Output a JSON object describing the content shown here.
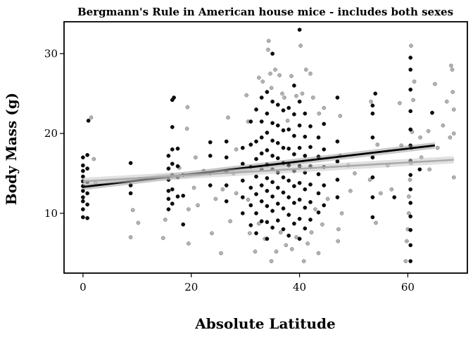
{
  "chart_data": {
    "type": "scatter",
    "title": "Bergmann's Rule in American house mice - includes both sexes",
    "xlabel": "Absolute Latitude",
    "ylabel": "Body Mass (g)",
    "xlim": [
      -3.5,
      71
    ],
    "ylim": [
      2.5,
      34
    ],
    "xticks": [
      0,
      20,
      40,
      60
    ],
    "yticks": [
      10,
      20,
      30
    ],
    "grid": false,
    "legend": "none",
    "series": [
      {
        "points": [
          [
            0,
            9.5
          ],
          [
            0,
            10.5
          ],
          [
            0,
            11.5
          ],
          [
            0,
            12.0
          ],
          [
            0,
            12.8
          ],
          [
            0,
            13.4
          ],
          [
            0,
            14.0
          ],
          [
            0,
            14.6
          ],
          [
            0,
            15.3
          ],
          [
            0,
            16.0
          ],
          [
            0,
            17.0
          ],
          [
            0.8,
            9.4
          ],
          [
            0.8,
            11.1
          ],
          [
            0.8,
            12.5
          ],
          [
            0.8,
            13.9
          ],
          [
            0.8,
            15.6
          ],
          [
            0.8,
            17.3
          ],
          [
            1.0,
            21.6
          ],
          [
            8.8,
            12.5
          ],
          [
            8.8,
            13.5
          ],
          [
            8.8,
            16.3
          ],
          [
            15.8,
            10.5
          ],
          [
            15.8,
            11.8
          ],
          [
            15.8,
            12.8
          ],
          [
            15.8,
            14.2
          ],
          [
            15.8,
            15.6
          ],
          [
            15.8,
            17.2
          ],
          [
            16.5,
            11.2
          ],
          [
            16.5,
            13.0
          ],
          [
            16.5,
            14.8
          ],
          [
            16.5,
            16.2
          ],
          [
            16.5,
            18.0
          ],
          [
            16.5,
            20.8
          ],
          [
            16.5,
            24.2
          ],
          [
            17.5,
            12.1
          ],
          [
            17.5,
            14.5
          ],
          [
            17.5,
            15.9
          ],
          [
            17.5,
            18.1
          ],
          [
            16.8,
            24.5
          ],
          [
            18.5,
            8.6
          ],
          [
            18.5,
            12.2
          ],
          [
            18.5,
            14.8
          ],
          [
            23.5,
            13.5
          ],
          [
            23.5,
            15.0
          ],
          [
            23.5,
            17.2
          ],
          [
            23.5,
            18.9
          ],
          [
            26.5,
            11.5
          ],
          [
            26.5,
            13.5
          ],
          [
            26.5,
            15.2
          ],
          [
            26.5,
            17.0
          ],
          [
            26.5,
            19.0
          ],
          [
            29.5,
            10.0
          ],
          [
            29.5,
            12.0
          ],
          [
            29.5,
            14.1
          ],
          [
            29.5,
            16.2
          ],
          [
            29.5,
            18.2
          ],
          [
            31,
            8.5
          ],
          [
            31,
            11.0
          ],
          [
            31,
            13.2
          ],
          [
            31,
            15.8
          ],
          [
            31,
            18.6
          ],
          [
            31,
            21.5
          ],
          [
            32,
            7.5
          ],
          [
            32,
            10.0
          ],
          [
            32,
            12.4
          ],
          [
            32,
            14.6
          ],
          [
            32,
            16.8
          ],
          [
            32,
            19.0
          ],
          [
            32,
            23.0
          ],
          [
            33,
            9.0
          ],
          [
            33,
            11.5
          ],
          [
            33,
            13.5
          ],
          [
            33,
            15.5
          ],
          [
            33,
            17.5
          ],
          [
            33,
            19.5
          ],
          [
            33,
            21.5
          ],
          [
            33,
            24.5
          ],
          [
            34,
            6.8
          ],
          [
            34,
            8.9
          ],
          [
            34,
            10.9
          ],
          [
            34,
            12.8
          ],
          [
            34,
            14.4
          ],
          [
            34,
            16.1
          ],
          [
            34,
            17.9
          ],
          [
            34,
            20.1
          ],
          [
            34,
            22.5
          ],
          [
            34,
            25.2
          ],
          [
            35,
            8.2
          ],
          [
            35,
            10.3
          ],
          [
            35,
            12.1
          ],
          [
            35,
            13.9
          ],
          [
            35,
            15.5
          ],
          [
            35,
            17.2
          ],
          [
            35,
            19.1
          ],
          [
            35,
            21.3
          ],
          [
            35,
            24.0
          ],
          [
            35,
            30.0
          ],
          [
            36,
            9.1
          ],
          [
            36,
            11.2
          ],
          [
            36,
            13.2
          ],
          [
            36,
            15.1
          ],
          [
            36,
            16.9
          ],
          [
            36,
            18.8
          ],
          [
            36,
            21.0
          ],
          [
            36,
            23.6
          ],
          [
            37,
            8.0
          ],
          [
            37,
            10.6
          ],
          [
            37,
            12.6
          ],
          [
            37,
            14.5
          ],
          [
            37,
            16.3
          ],
          [
            37,
            18.2
          ],
          [
            37,
            20.4
          ],
          [
            37,
            22.9
          ],
          [
            38,
            7.2
          ],
          [
            38,
            9.8
          ],
          [
            38,
            12.0
          ],
          [
            38,
            14.1
          ],
          [
            38,
            16.0
          ],
          [
            38,
            18.1
          ],
          [
            38,
            20.5
          ],
          [
            38,
            23.2
          ],
          [
            39,
            8.7
          ],
          [
            39,
            11.3
          ],
          [
            39,
            13.4
          ],
          [
            39,
            15.3
          ],
          [
            39,
            17.4
          ],
          [
            39,
            19.7
          ],
          [
            39,
            22.4
          ],
          [
            39,
            26.0
          ],
          [
            40,
            6.8
          ],
          [
            40,
            9.3
          ],
          [
            40,
            11.7
          ],
          [
            40,
            13.8
          ],
          [
            40,
            15.9
          ],
          [
            40,
            18.2
          ],
          [
            40,
            21.0
          ],
          [
            40,
            24.0
          ],
          [
            40,
            33.0
          ],
          [
            41,
            8.1
          ],
          [
            41,
            10.7
          ],
          [
            41,
            13.0
          ],
          [
            41,
            15.1
          ],
          [
            41,
            17.2
          ],
          [
            41,
            19.6
          ],
          [
            41,
            22.5
          ],
          [
            42,
            9.2
          ],
          [
            42,
            11.4
          ],
          [
            42,
            13.6
          ],
          [
            42,
            15.9
          ],
          [
            42,
            18.3
          ],
          [
            42,
            20.9
          ],
          [
            43.5,
            10.1
          ],
          [
            43.5,
            12.5
          ],
          [
            43.5,
            14.9
          ],
          [
            43.5,
            17.1
          ],
          [
            43.5,
            19.5
          ],
          [
            44.5,
            11.0
          ],
          [
            44.5,
            13.5
          ],
          [
            44.5,
            15.8
          ],
          [
            44.5,
            18.0
          ],
          [
            44.5,
            21.2
          ],
          [
            47,
            12.0
          ],
          [
            47,
            14.2
          ],
          [
            47,
            16.5
          ],
          [
            47,
            19.0
          ],
          [
            47,
            24.5
          ],
          [
            53.5,
            9.5
          ],
          [
            53.5,
            12.0
          ],
          [
            53.5,
            14.5
          ],
          [
            53.5,
            17.0
          ],
          [
            53.5,
            19.5
          ],
          [
            53.5,
            22.5
          ],
          [
            53.5,
            23.5
          ],
          [
            54,
            25.0
          ],
          [
            57.5,
            12.0
          ],
          [
            60.5,
            4.0
          ],
          [
            60.5,
            6.0
          ],
          [
            60.5,
            7.9
          ],
          [
            60.5,
            9.6
          ],
          [
            60.5,
            11.3
          ],
          [
            60.5,
            13.0
          ],
          [
            60.5,
            14.8
          ],
          [
            60.5,
            16.6
          ],
          [
            60.5,
            18.5
          ],
          [
            60.5,
            20.5
          ],
          [
            60.5,
            22.8
          ],
          [
            60.5,
            25.5
          ],
          [
            60.5,
            28.0
          ],
          [
            60.5,
            29.5
          ],
          [
            62.2,
            15.5
          ],
          [
            64.5,
            22.6
          ]
        ]
      },
      {
        "points": [
          [
            1.5,
            22.0
          ],
          [
            2.0,
            16.8
          ],
          [
            2.3,
            13.8
          ],
          [
            8.8,
            7.0
          ],
          [
            10.2,
            8.8
          ],
          [
            9.2,
            10.4
          ],
          [
            10.5,
            14.3
          ],
          [
            14.8,
            6.9
          ],
          [
            15.2,
            9.2
          ],
          [
            17.8,
            15.7
          ],
          [
            19.5,
            6.2
          ],
          [
            19.3,
            23.3
          ],
          [
            19.2,
            20.6
          ],
          [
            19.5,
            10.5
          ],
          [
            20.5,
            13.2
          ],
          [
            20.8,
            17.0
          ],
          [
            21.2,
            11.0
          ],
          [
            22.3,
            15.3
          ],
          [
            23.8,
            7.5
          ],
          [
            24.5,
            11.8
          ],
          [
            25.5,
            5.0
          ],
          [
            25.8,
            13.0
          ],
          [
            26.8,
            22.0
          ],
          [
            27.2,
            9.0
          ],
          [
            27.8,
            15.0
          ],
          [
            28.3,
            12.5
          ],
          [
            28.3,
            18.0
          ],
          [
            30.2,
            24.8
          ],
          [
            30.5,
            21.5
          ],
          [
            30.8,
            7.5
          ],
          [
            30.5,
            11.7
          ],
          [
            31.8,
            5.2
          ],
          [
            32.5,
            27.0
          ],
          [
            32.5,
            8.7
          ],
          [
            33.2,
            26.5
          ],
          [
            33.6,
            6.8
          ],
          [
            34.2,
            30.5
          ],
          [
            34.3,
            31.6
          ],
          [
            34.6,
            27.5
          ],
          [
            34.8,
            4.0
          ],
          [
            34.8,
            25.7
          ],
          [
            35.5,
            28.0
          ],
          [
            35.7,
            5.2
          ],
          [
            36.3,
            27.3
          ],
          [
            36.5,
            7.6
          ],
          [
            36.8,
            25.0
          ],
          [
            37.2,
            24.5
          ],
          [
            37.5,
            6.0
          ],
          [
            37.8,
            21.6
          ],
          [
            38.5,
            27.2
          ],
          [
            38.6,
            5.5
          ],
          [
            39.4,
            24.7
          ],
          [
            39.4,
            7.0
          ],
          [
            40.2,
            31.0
          ],
          [
            40.5,
            25.0
          ],
          [
            40.8,
            4.0
          ],
          [
            41.2,
            28.0
          ],
          [
            41.5,
            6.2
          ],
          [
            42.0,
            27.5
          ],
          [
            42.2,
            7.6
          ],
          [
            42.5,
            24.5
          ],
          [
            42.9,
            10.5
          ],
          [
            43.5,
            5.0
          ],
          [
            43.6,
            22.5
          ],
          [
            44.2,
            8.6
          ],
          [
            44.5,
            23.2
          ],
          [
            45.2,
            11.8
          ],
          [
            47.1,
            6.5
          ],
          [
            47.2,
            8.0
          ],
          [
            47.5,
            22.2
          ],
          [
            47.8,
            10.0
          ],
          [
            47.5,
            17.2
          ],
          [
            49.0,
            16.0
          ],
          [
            49.4,
            12.8
          ],
          [
            50.2,
            15.0
          ],
          [
            53.0,
            14.2
          ],
          [
            53.2,
            24.0
          ],
          [
            54.1,
            8.8
          ],
          [
            54.4,
            18.6
          ],
          [
            55.0,
            12.5
          ],
          [
            56.3,
            16.0
          ],
          [
            57.0,
            13.0
          ],
          [
            58.5,
            23.8
          ],
          [
            58.8,
            18.5
          ],
          [
            59.6,
            4.0
          ],
          [
            59.8,
            6.5
          ],
          [
            60.0,
            8.0
          ],
          [
            60.2,
            10.0
          ],
          [
            60.2,
            12.1
          ],
          [
            60.4,
            14.2
          ],
          [
            60.6,
            16.3
          ],
          [
            60.7,
            18.2
          ],
          [
            60.8,
            20.2
          ],
          [
            61.0,
            24.2
          ],
          [
            61.2,
            26.5
          ],
          [
            60.6,
            31.0
          ],
          [
            62.3,
            19.5
          ],
          [
            62.5,
            17.0
          ],
          [
            63.8,
            20.3
          ],
          [
            64.0,
            15.5
          ],
          [
            65.0,
            26.2
          ],
          [
            65.5,
            18.2
          ],
          [
            66.5,
            21.0
          ],
          [
            67.2,
            24.0
          ],
          [
            68.0,
            28.5
          ],
          [
            68.2,
            28.0
          ],
          [
            68.3,
            25.2
          ],
          [
            68.5,
            20.0
          ],
          [
            68.5,
            14.5
          ],
          [
            68.5,
            23.0
          ],
          [
            67.8,
            19.5
          ]
        ]
      }
    ],
    "fit_lines": [
      {
        "x": [
          0,
          65
        ],
        "y": [
          13.3,
          18.5
        ],
        "ci": 0.4
      },
      {
        "x": [
          0,
          68.5
        ],
        "y": [
          14.0,
          16.7
        ],
        "ci": 0.45
      }
    ]
  }
}
